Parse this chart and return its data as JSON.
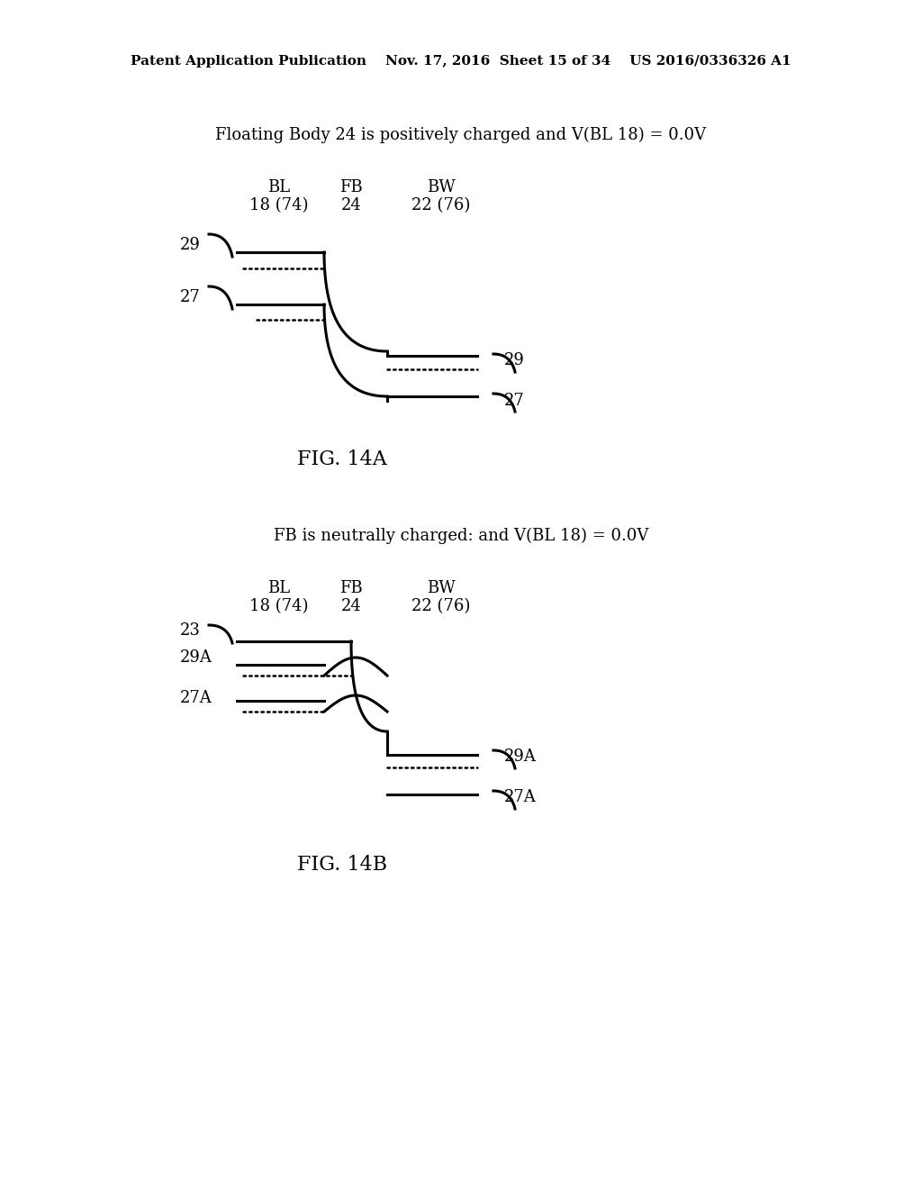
{
  "title_A": "Floating Body 24 is positively charged and V(BL 18) = 0.0V",
  "title_B": "FB is neutrally charged: and V(BL 18) = 0.0V",
  "fig_label_A": "FIG. 14A",
  "fig_label_B": "FIG. 14B",
  "header_text": "Patent Application Publication    Nov. 17, 2016  Sheet 15 of 34    US 2016/0336326 A1",
  "col_labels_top": [
    "BL",
    "FB",
    "BW"
  ],
  "col_labels_bot": [
    "18 (74)",
    "24",
    "22 (76)"
  ],
  "background_color": "#ffffff",
  "line_color": "#000000",
  "dot_color": "#000000"
}
